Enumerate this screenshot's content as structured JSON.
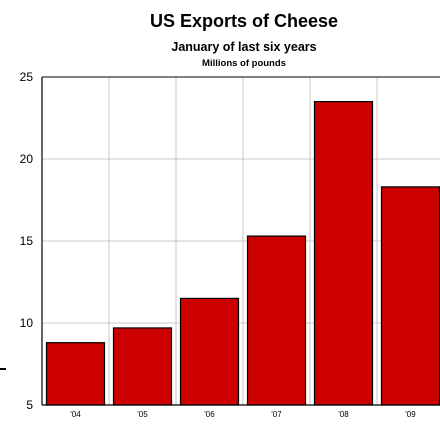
{
  "chart_data": {
    "type": "bar",
    "title": "US Exports of Cheese",
    "subtitle": "January of last six years",
    "units": "Millions of pounds",
    "categories": [
      "'04",
      "'05",
      "'06",
      "'07",
      "'08",
      "'09"
    ],
    "values": [
      8.8,
      9.7,
      11.5,
      15.3,
      23.5,
      18.3
    ],
    "ylim": [
      5,
      25
    ],
    "yticks": [
      "5",
      "10",
      "15",
      "20",
      "25"
    ],
    "grid": true,
    "bar_color": "#cc0000",
    "bar_edge_color": "#000000",
    "grid_color": "#c8c8c8"
  }
}
